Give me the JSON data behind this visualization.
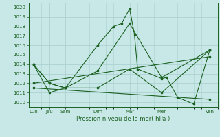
{
  "title": "Pression niveau de la mer( hPa )",
  "ylim": [
    1009.5,
    1020.5
  ],
  "yticks": [
    1010,
    1011,
    1012,
    1013,
    1014,
    1015,
    1016,
    1017,
    1018,
    1019,
    1020
  ],
  "bg_color": "#c8e8e8",
  "line_color": "#1a6020",
  "grid_color": "#a8cece",
  "x_labels": [
    "Lun",
    "Jeu",
    "Sam",
    "Dim",
    "Mar",
    "Mer",
    "Ven"
  ],
  "x_positions": [
    0,
    1,
    2,
    4,
    6,
    8,
    11
  ],
  "xlim": [
    -0.3,
    11.5
  ],
  "series": [
    {
      "x": [
        0,
        1,
        2,
        4,
        5,
        5.5,
        6,
        6.3,
        6.5,
        8,
        8.3,
        9,
        10,
        11
      ],
      "y": [
        1014.0,
        1012.0,
        1011.5,
        1016.0,
        1018.0,
        1018.3,
        1019.85,
        1017.2,
        1013.5,
        1012.5,
        1012.6,
        1010.5,
        1009.8,
        1015.5
      ]
    },
    {
      "x": [
        0,
        1,
        2,
        4,
        6,
        8,
        11
      ],
      "y": [
        1014.0,
        1011.0,
        1011.5,
        1013.3,
        1018.3,
        1012.6,
        1015.5
      ]
    },
    {
      "x": [
        0,
        1,
        2,
        4,
        6,
        8,
        11
      ],
      "y": [
        1014.0,
        1012.0,
        1011.5,
        1011.5,
        1013.5,
        1011.0,
        1015.5
      ]
    },
    {
      "x": [
        0,
        11
      ],
      "y": [
        1012.0,
        1014.8
      ]
    },
    {
      "x": [
        0,
        11
      ],
      "y": [
        1011.5,
        1010.3
      ]
    }
  ]
}
